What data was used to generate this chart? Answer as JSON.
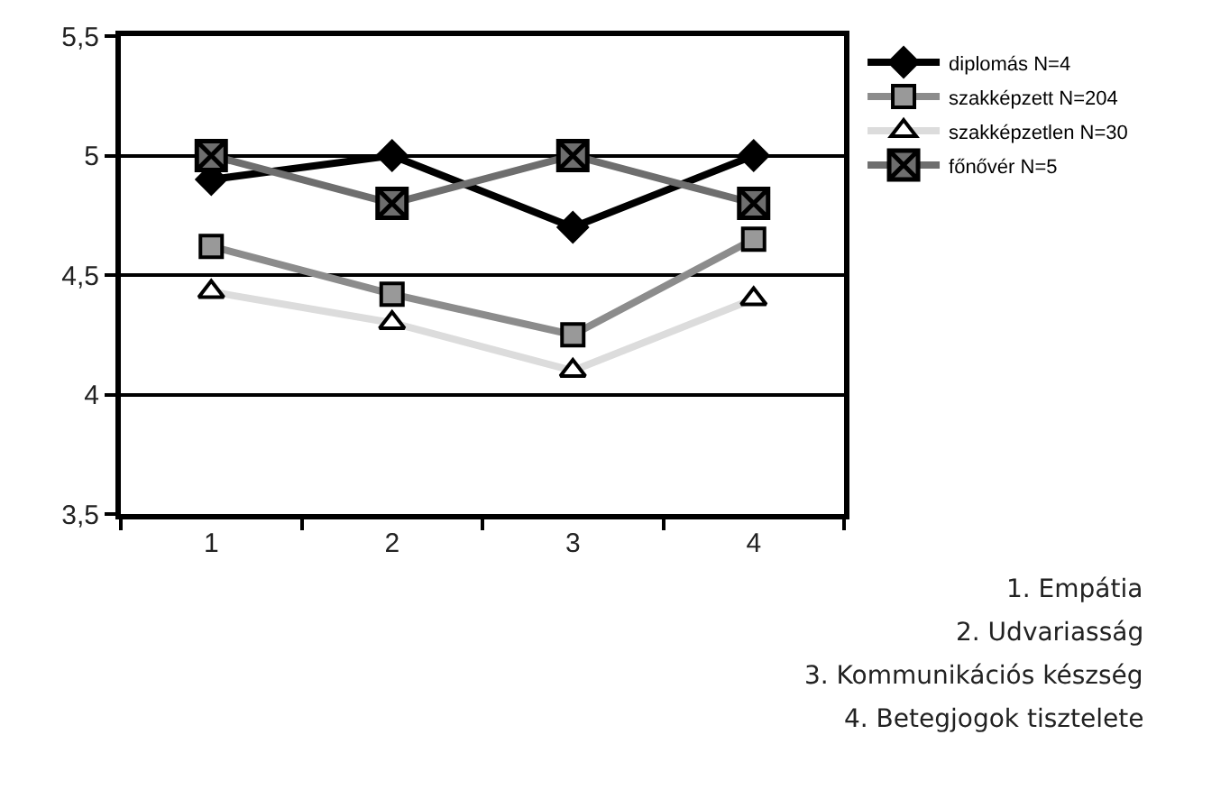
{
  "chart_data": {
    "type": "line",
    "categories": [
      "1",
      "2",
      "3",
      "4"
    ],
    "series": [
      {
        "name": "diplomás N=4",
        "color": "#000000",
        "marker": "diamond",
        "values": [
          4.9,
          5.0,
          4.7,
          5.0
        ]
      },
      {
        "name": "szakképzett N=204",
        "color": "#8c8c8c",
        "marker": "square",
        "values": [
          4.62,
          4.42,
          4.25,
          4.65
        ]
      },
      {
        "name": "szakképzetlen N=30",
        "color": "#dcdcdc",
        "marker": "triangle",
        "values": [
          4.43,
          4.3,
          4.1,
          4.4
        ]
      },
      {
        "name": "főnővér N=5",
        "color": "#6e6e6e",
        "marker": "cross",
        "values": [
          5.0,
          4.8,
          5.0,
          4.8
        ]
      }
    ],
    "ylim": [
      3.5,
      5.5
    ],
    "yticks": [
      {
        "value": 3.5,
        "label": "3,5"
      },
      4,
      {
        "value": 4.5,
        "label": "4,5"
      },
      5,
      {
        "value": 5.5,
        "label": "5,5"
      }
    ],
    "grid": "y",
    "legend": "right",
    "annotations": [
      "1. Empátia",
      "2. Udvariasság",
      "3. Kommunikációs készség",
      "4. Betegjogok tisztelete"
    ]
  }
}
